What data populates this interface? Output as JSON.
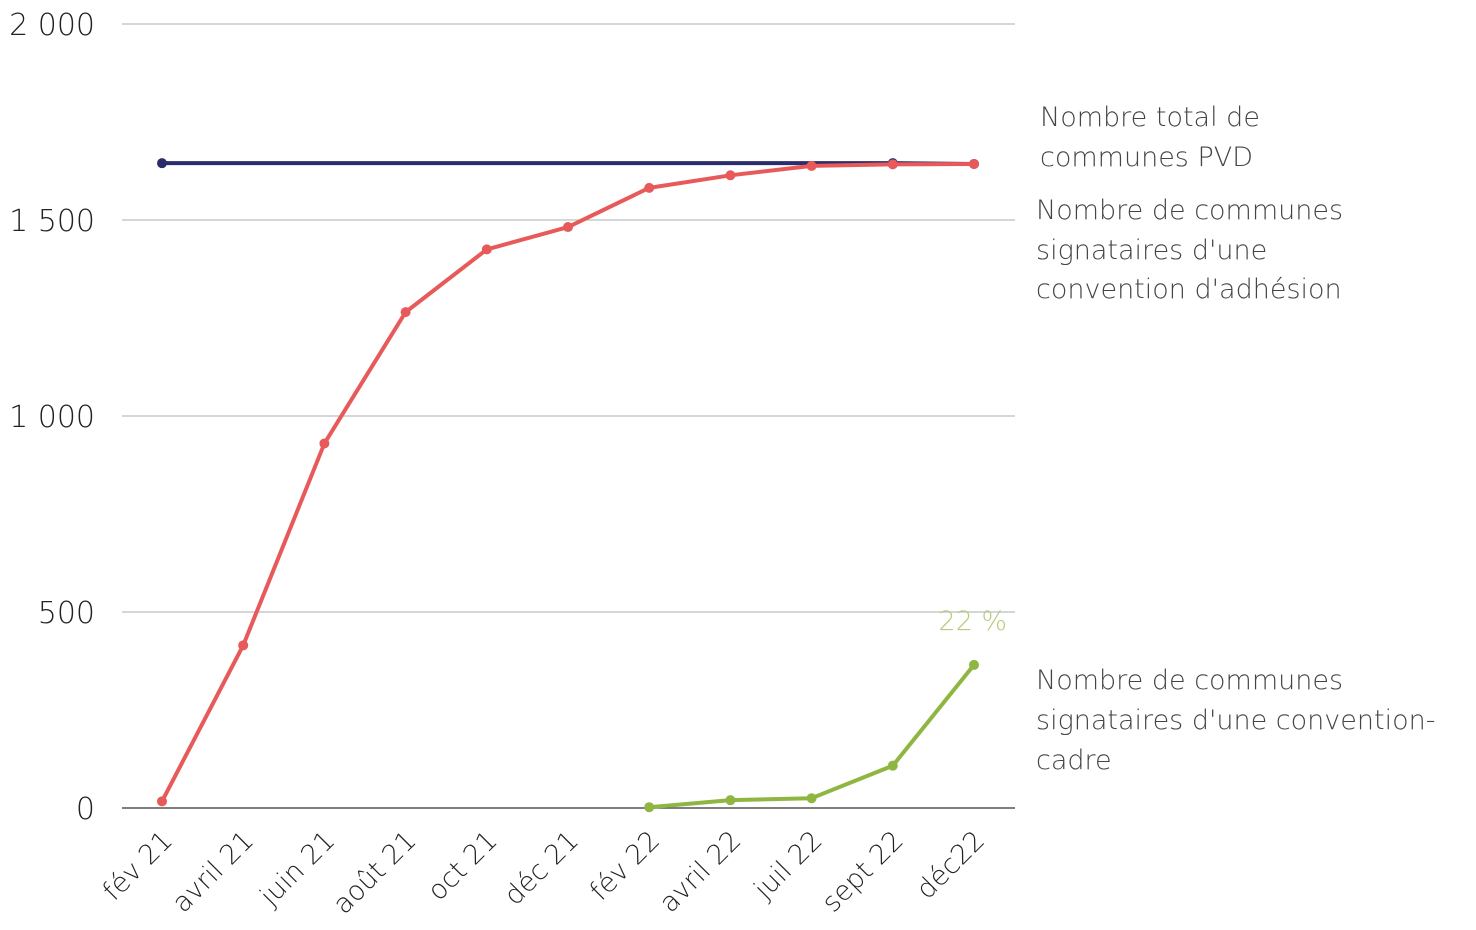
{
  "chart_data": {
    "type": "line",
    "categories": [
      "fév 21",
      "avril 21",
      "juin 21",
      "août 21",
      "oct 21",
      "déc 21",
      "fév 22",
      "avril 22",
      "juil 22",
      "sept 22",
      "déc22"
    ],
    "ylim": [
      0,
      2000
    ],
    "yticks": [
      "0",
      "500",
      "1 000",
      "1 500",
      "2 000"
    ],
    "ytick_values": [
      0,
      500,
      1000,
      1500,
      2000
    ],
    "grid": true,
    "legend": "right",
    "series": [
      {
        "name": "Nombre total de communes PVD",
        "color": "#2b2d6b",
        "values": [
          1645,
          null,
          null,
          null,
          null,
          null,
          null,
          null,
          null,
          1645,
          1643
        ]
      },
      {
        "name": "Nombre de communes signataires d'une convention d'adhésion",
        "color": "#e85a5a",
        "values": [
          17,
          415,
          930,
          1265,
          1425,
          1482,
          1582,
          1614,
          1638,
          1642,
          1643
        ]
      },
      {
        "name": "Nombre de communes signataires d'une convention-cadre",
        "color": "#8fb641",
        "values": [
          null,
          null,
          null,
          null,
          null,
          null,
          2,
          20,
          25,
          108,
          365
        ]
      }
    ],
    "annotations": [
      {
        "text": "22 %",
        "series": 2,
        "point": 10,
        "color": "#b5cc7a"
      }
    ]
  },
  "legend": {
    "total": [
      "Nombre total de",
      "communes PVD"
    ],
    "adhesion": [
      "Nombre de communes",
      "signataires d'une",
      "convention d'adhésion"
    ],
    "cadre": [
      "Nombre de communes",
      "signataires d'une convention-",
      "cadre"
    ]
  }
}
